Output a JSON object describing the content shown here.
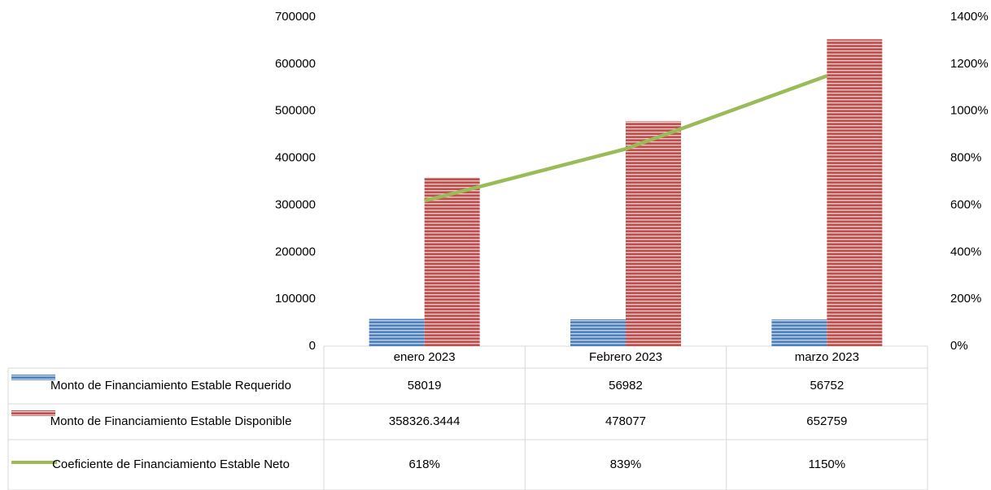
{
  "chart_data": {
    "type": "bar_line",
    "categories": [
      "enero 2023",
      "Febrero 2023",
      "marzo 2023"
    ],
    "series": [
      {
        "name": "Monto de Financiamiento Estable Requerido",
        "color": "#4f81bd",
        "type": "bar",
        "values": [
          58019,
          56982,
          56752
        ]
      },
      {
        "name": "Monto de Financiamiento Estable Disponible",
        "color": "#c0504d",
        "type": "bar",
        "values": [
          358326.3444,
          478077,
          652759
        ]
      },
      {
        "name": "Coeficiente de Financiamiento Estable Neto",
        "color": "#9bbb59",
        "type": "line",
        "axis": "y2",
        "values": [
          618,
          839,
          1150
        ],
        "value_labels": [
          "618%",
          "839%",
          "1150%"
        ]
      }
    ],
    "ylim": [
      0,
      700000
    ],
    "yticks": [
      0,
      100000,
      200000,
      300000,
      400000,
      500000,
      600000,
      700000
    ],
    "y2lim": [
      0,
      1400
    ],
    "y2ticks": [
      {
        "value": 0,
        "label": "0%"
      },
      {
        "value": 200,
        "label": "200%"
      },
      {
        "value": 400,
        "label": "400%"
      },
      {
        "value": 600,
        "label": "600%"
      },
      {
        "value": 800,
        "label": "800%"
      },
      {
        "value": 1000,
        "label": "1000%"
      },
      {
        "value": 1200,
        "label": "1200%"
      },
      {
        "value": 1400,
        "label": "1400%"
      }
    ],
    "data_table": true,
    "grid": false
  }
}
